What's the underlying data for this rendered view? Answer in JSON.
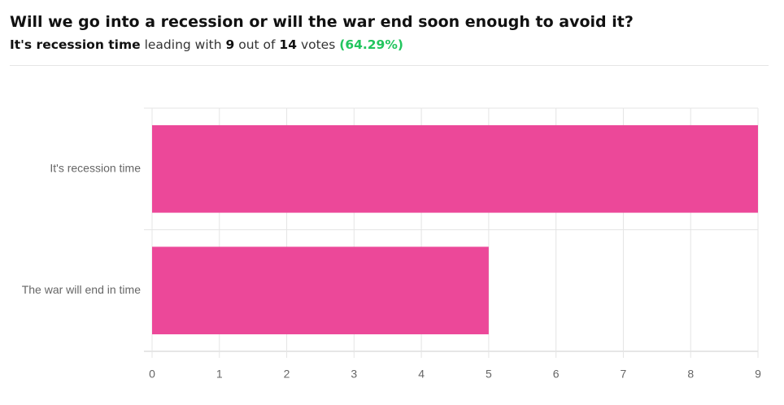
{
  "header": {
    "title": "Will we go into a recession or will the war end soon enough to avoid it?",
    "leader": "It's recession time",
    "leading_text": "leading with",
    "leader_votes": 9,
    "out_of_text": "out of",
    "total_votes": 14,
    "votes_text": "votes",
    "percent": "(64.29%)"
  },
  "chart_data": {
    "type": "bar",
    "orientation": "horizontal",
    "categories": [
      "It's recession time",
      "The war will end in time"
    ],
    "values": [
      9,
      5
    ],
    "color": "#ec4899",
    "xlim": [
      0,
      9
    ],
    "xticks": [
      0,
      1,
      2,
      3,
      4,
      5,
      6,
      7,
      8,
      9
    ],
    "grid": true
  }
}
